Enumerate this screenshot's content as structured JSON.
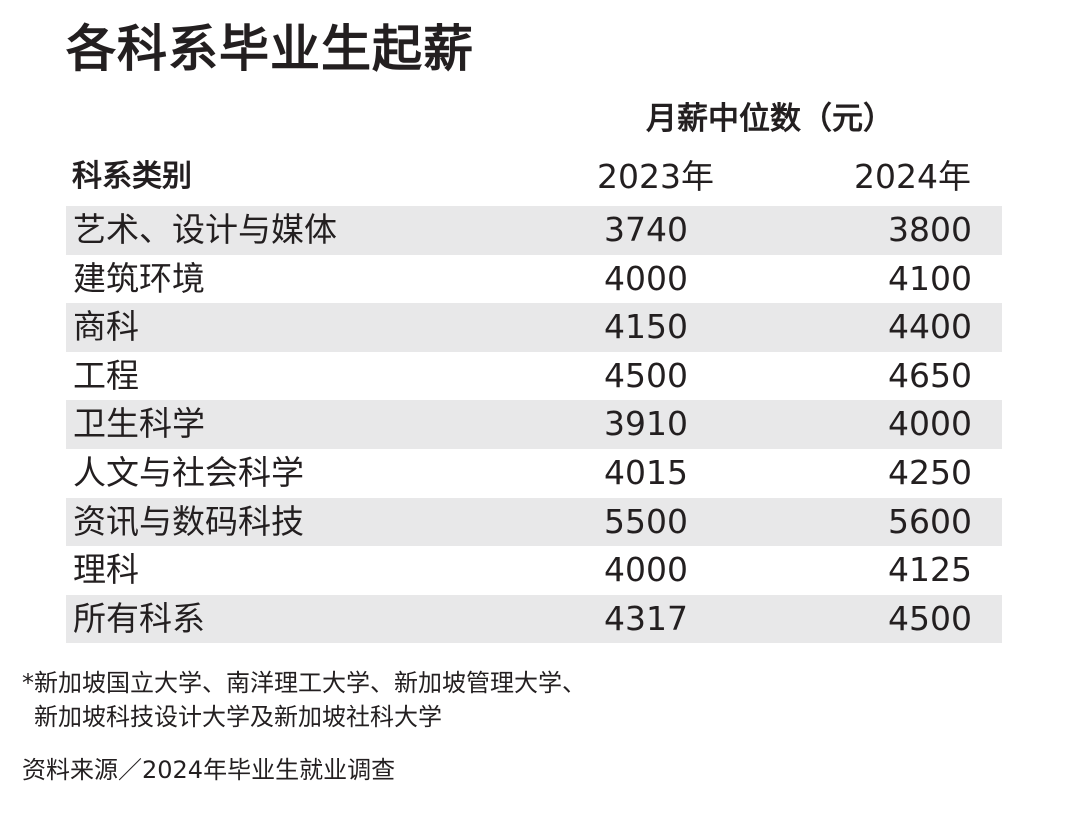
{
  "chart_data": {
    "type": "table",
    "title": "各科系毕业生起薪",
    "group_header": "月薪中位数（元）",
    "columns": [
      "科系类别",
      "2023年",
      "2024年"
    ],
    "rows": [
      {
        "category": "艺术、设计与媒体",
        "y2023": "3740",
        "y2024": "3800"
      },
      {
        "category": "建筑环境",
        "y2023": "4000",
        "y2024": "4100"
      },
      {
        "category": "商科",
        "y2023": "4150",
        "y2024": "4400"
      },
      {
        "category": "工程",
        "y2023": "4500",
        "y2024": "4650"
      },
      {
        "category": "卫生科学",
        "y2023": "3910",
        "y2024": "4000"
      },
      {
        "category": "人文与社会科学",
        "y2023": "4015",
        "y2024": "4250"
      },
      {
        "category": "资讯与数码科技",
        "y2023": "5500",
        "y2024": "5600"
      },
      {
        "category": "理科",
        "y2023": "4000",
        "y2024": "4125"
      },
      {
        "category": "所有科系",
        "y2023": "4317",
        "y2024": "4500"
      }
    ],
    "footnote": [
      "*新加坡国立大学、南洋理工大学、新加坡管理大学、",
      "新加坡科技设计大学及新加坡社科大学"
    ],
    "source": "资料来源／2024年毕业生就业调查",
    "row_shading_color": "#e8e8e9",
    "text_color": "#231f20"
  }
}
